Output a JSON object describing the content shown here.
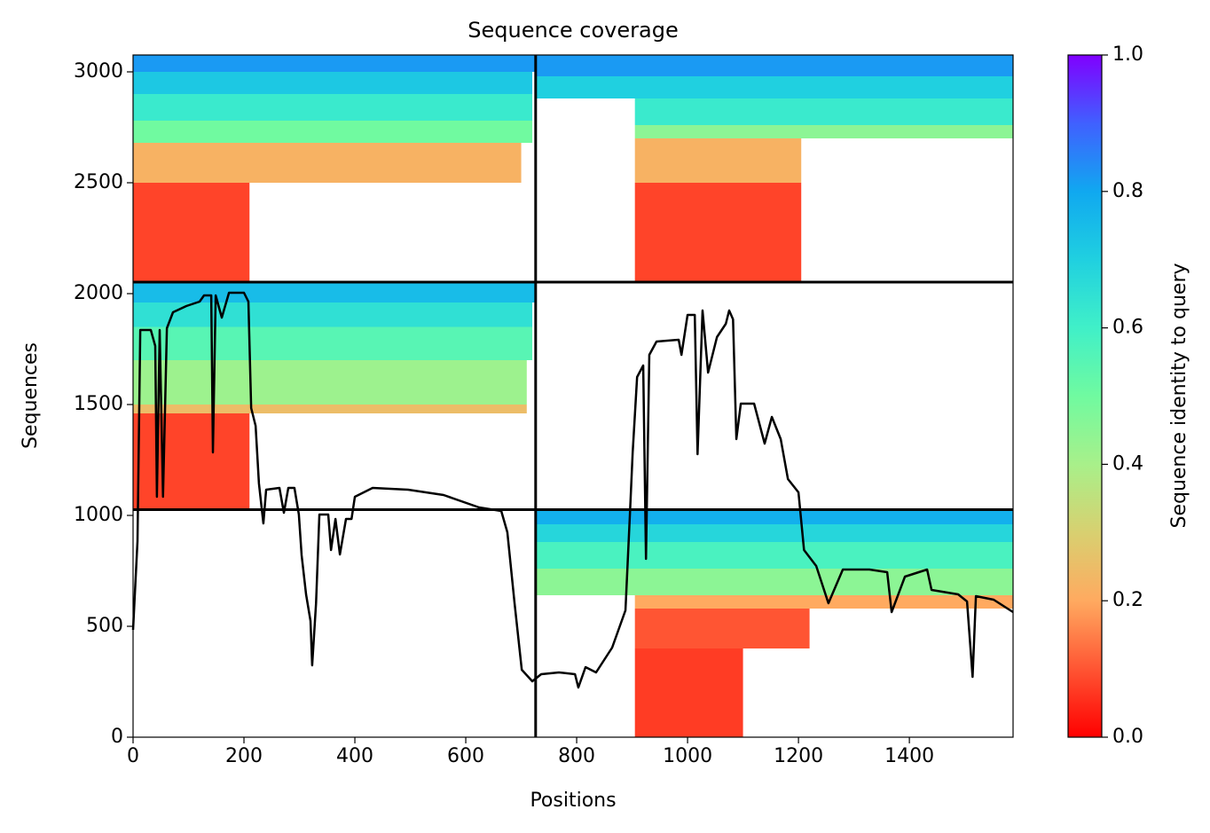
{
  "chart_data": {
    "type": "coverage",
    "title": "Sequence coverage",
    "xlabel": "Positions",
    "ylabel": "Sequences",
    "xlim": [
      0,
      1587
    ],
    "ylim": [
      0,
      3076
    ],
    "xticks": [
      0,
      200,
      400,
      600,
      800,
      1000,
      1200,
      1400
    ],
    "yticks": [
      0,
      500,
      1000,
      1500,
      2000,
      2500,
      3000
    ],
    "chain_breaks_x": [
      726
    ],
    "chain_breaks_y": [
      1026,
      2052
    ],
    "colormap": [
      "#ff0000",
      "#ff5533",
      "#ffaa60",
      "#d8d070",
      "#a8f08a",
      "#70faa0",
      "#40f0c8",
      "#20d0e0",
      "#10a8f0",
      "#4060ff",
      "#8000ff"
    ],
    "colorbar_label": "Sequence identity to query",
    "colorbar_lim": [
      0,
      1
    ],
    "colorbar_ticks": [
      {
        "value": 0,
        "label": "0.0"
      },
      {
        "value": 0.2,
        "label": "0.2"
      },
      {
        "value": 0.4,
        "label": "0.4"
      },
      {
        "value": 0.6,
        "label": "0.6"
      },
      {
        "value": 0.8,
        "label": "0.8"
      },
      {
        "value": 1,
        "label": "1.0"
      }
    ],
    "blocks": [
      [
        0,
        210,
        2052,
        2500,
        0.08
      ],
      [
        0,
        700,
        2500,
        2680,
        0.22
      ],
      [
        0,
        720,
        2680,
        2780,
        0.5
      ],
      [
        0,
        720,
        2780,
        2900,
        0.62
      ],
      [
        0,
        720,
        2900,
        3000,
        0.72
      ],
      [
        0,
        726,
        3000,
        3076,
        0.82
      ],
      [
        905,
        1205,
        2052,
        2500,
        0.08
      ],
      [
        905,
        1205,
        2500,
        2700,
        0.22
      ],
      [
        905,
        1587,
        2700,
        2760,
        0.45
      ],
      [
        905,
        1587,
        2760,
        2880,
        0.62
      ],
      [
        726,
        1587,
        2880,
        2980,
        0.7
      ],
      [
        726,
        1587,
        2980,
        3076,
        0.82
      ],
      [
        0,
        210,
        1026,
        1460,
        0.08
      ],
      [
        0,
        710,
        1460,
        1500,
        0.25
      ],
      [
        0,
        710,
        1500,
        1700,
        0.42
      ],
      [
        0,
        720,
        1700,
        1850,
        0.55
      ],
      [
        0,
        720,
        1850,
        1960,
        0.65
      ],
      [
        0,
        726,
        1960,
        2052,
        0.75
      ],
      [
        905,
        1100,
        0,
        400,
        0.07
      ],
      [
        905,
        1220,
        400,
        580,
        0.1
      ],
      [
        905,
        1587,
        580,
        640,
        0.2
      ],
      [
        726,
        1587,
        640,
        760,
        0.45
      ],
      [
        726,
        1587,
        760,
        880,
        0.58
      ],
      [
        726,
        1587,
        880,
        960,
        0.68
      ],
      [
        726,
        1587,
        960,
        1026,
        0.78
      ]
    ],
    "coverage": {
      "x": [
        0,
        8,
        13,
        32,
        40,
        43,
        48,
        54,
        61,
        72,
        96,
        120,
        128,
        141,
        144,
        149,
        160,
        173,
        200,
        208,
        213,
        221,
        227,
        235,
        240,
        264,
        272,
        280,
        291,
        299,
        304,
        312,
        320,
        323,
        330,
        336,
        352,
        357,
        365,
        373,
        384,
        394,
        400,
        432,
        496,
        560,
        624,
        664,
        675,
        688,
        701,
        720,
        736,
        768,
        797,
        803,
        816,
        835,
        864,
        888,
        896,
        901,
        909,
        920,
        925,
        931,
        944,
        984,
        989,
        1000,
        1013,
        1018,
        1027,
        1037,
        1053,
        1069,
        1075,
        1082,
        1088,
        1096,
        1120,
        1139,
        1152,
        1168,
        1181,
        1200,
        1210,
        1232,
        1254,
        1280,
        1328,
        1360,
        1368,
        1392,
        1432,
        1440,
        1488,
        1504,
        1514,
        1520,
        1552,
        1587
      ],
      "y": [
        484,
        884,
        1836,
        1836,
        1764,
        1084,
        1836,
        1084,
        1844,
        1916,
        1944,
        1964,
        1992,
        1992,
        1284,
        1992,
        1892,
        2004,
        2004,
        1964,
        1484,
        1404,
        1144,
        964,
        1116,
        1124,
        1012,
        1124,
        1124,
        1004,
        820,
        644,
        524,
        324,
        604,
        1004,
        1004,
        844,
        984,
        824,
        984,
        984,
        1084,
        1124,
        1116,
        1092,
        1036,
        1020,
        924,
        604,
        304,
        252,
        284,
        292,
        284,
        224,
        316,
        292,
        404,
        572,
        1004,
        1284,
        1624,
        1676,
        804,
        1724,
        1784,
        1792,
        1724,
        1904,
        1904,
        1276,
        1924,
        1644,
        1804,
        1864,
        1924,
        1884,
        1344,
        1504,
        1504,
        1324,
        1444,
        1344,
        1164,
        1104,
        844,
        772,
        604,
        756,
        756,
        744,
        564,
        724,
        756,
        664,
        644,
        612,
        272,
        636,
        620,
        564
      ]
    }
  }
}
